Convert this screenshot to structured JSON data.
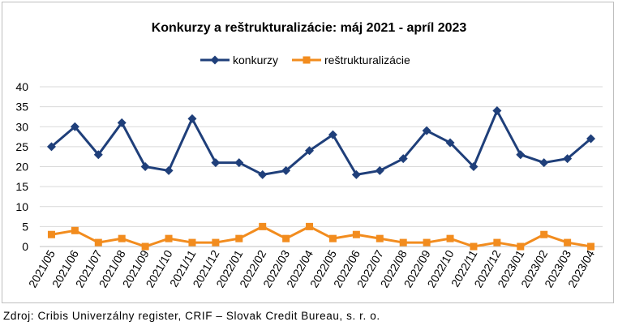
{
  "chart_data": {
    "type": "line",
    "title": "Konkurzy a reštrukturalizácie: máj 2021 - apríl 2023",
    "legend_position": "top",
    "grid": true,
    "ylim": [
      0,
      40
    ],
    "yticks": [
      0,
      5,
      10,
      15,
      20,
      25,
      30,
      35,
      40
    ],
    "categories": [
      "2021/05",
      "2021/06",
      "2021/07",
      "2021/08",
      "2021/09",
      "2021/10",
      "2021/11",
      "2021/12",
      "2022/01",
      "2022/02",
      "2022/03",
      "2022/04",
      "2022/05",
      "2022/06",
      "2022/07",
      "2022/08",
      "2022/09",
      "2022/10",
      "2022/11",
      "2022/12",
      "2023/01",
      "2023/02",
      "2023/03",
      "2023/04"
    ],
    "series": [
      {
        "name": "konkurzy",
        "color": "#1f3f7a",
        "marker": "diamond",
        "values": [
          25,
          30,
          23,
          31,
          20,
          19,
          32,
          21,
          21,
          18,
          19,
          24,
          28,
          18,
          19,
          22,
          29,
          26,
          20,
          34,
          23,
          21,
          22,
          27
        ]
      },
      {
        "name": "reštrukturalizácie",
        "color": "#f28c1e",
        "marker": "square",
        "values": [
          3,
          4,
          1,
          2,
          0,
          2,
          1,
          1,
          2,
          5,
          2,
          5,
          2,
          3,
          2,
          1,
          1,
          2,
          0,
          1,
          0,
          3,
          1,
          0
        ]
      }
    ]
  },
  "source": "Zdroj: Cribis Univerzálny register, CRIF – Slovak Credit Bureau, s. r. o."
}
